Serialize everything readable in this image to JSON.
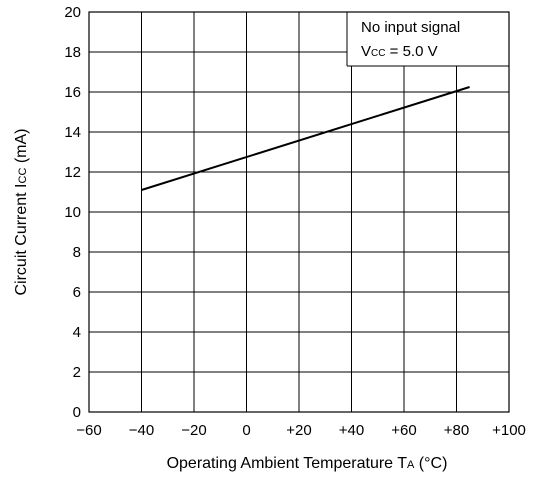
{
  "chart_data": {
    "type": "line",
    "title": "",
    "xlabel": {
      "text": "Operating Ambient Temperature",
      "symbol": "T",
      "subscript": "A",
      "unit": "(°C)"
    },
    "ylabel": {
      "text": "Circuit Current",
      "symbol": "I",
      "subscript": "CC",
      "unit": "(mA)"
    },
    "xlim": [
      -60,
      100
    ],
    "ylim": [
      0,
      20
    ],
    "x_ticks": [
      -60,
      -40,
      -20,
      0,
      20,
      40,
      60,
      80,
      100
    ],
    "x_tick_labels": [
      "−60",
      "−40",
      "−20",
      "0",
      "+20",
      "+40",
      "+60",
      "+80",
      "+100"
    ],
    "y_ticks": [
      0,
      2,
      4,
      6,
      8,
      10,
      12,
      14,
      16,
      18,
      20
    ],
    "y_tick_labels": [
      "0",
      "2",
      "4",
      "6",
      "8",
      "10",
      "12",
      "14",
      "16",
      "18",
      "20"
    ],
    "grid": true,
    "series": [
      {
        "x": [
          -40,
          85
        ],
        "y": [
          11.1,
          16.25
        ],
        "color": "#000000"
      }
    ],
    "annotation": {
      "line1": "No input signal",
      "line2_symbol": "V",
      "line2_subscript": "CC",
      "line2_value": " = 5.0 V",
      "placement": "top-right"
    }
  }
}
